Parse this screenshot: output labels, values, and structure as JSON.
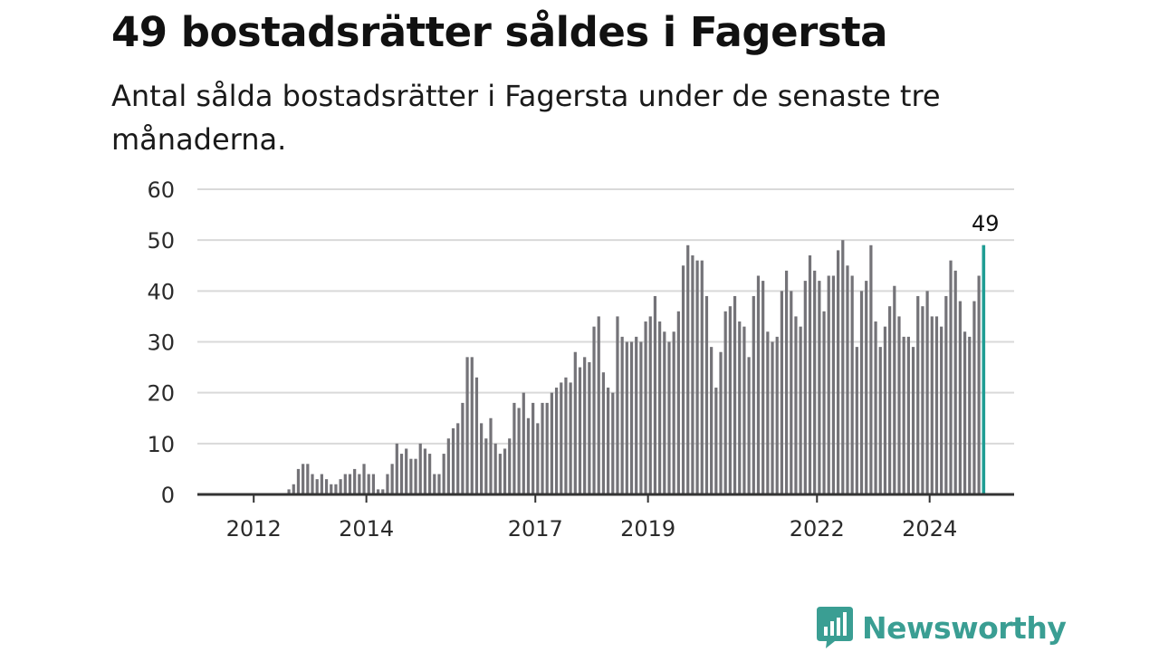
{
  "header": {
    "title": "49 bostadsrätter såldes i Fagersta",
    "subtitle": "Antal sålda bostadsrätter i Fagersta under de senaste tre månaderna."
  },
  "brand": {
    "name": "Newsworthy",
    "color": "#3a9e93",
    "icon": "newsworthy-logo-icon"
  },
  "colors": {
    "bar": "#747378",
    "highlight": "#1f9d94",
    "grid": "#d9d9d9",
    "axis": "#333333"
  },
  "chart_data": {
    "type": "bar",
    "title": "",
    "xlabel": "",
    "ylabel": "",
    "ylim": [
      0,
      60
    ],
    "y_ticks": [
      0,
      10,
      20,
      30,
      40,
      50,
      60
    ],
    "x_ticks": [
      "2012",
      "2014",
      "2017",
      "2019",
      "2022",
      "2024"
    ],
    "grid": true,
    "x_range": [
      "2011-01",
      "2025-07"
    ],
    "series": [
      {
        "start": "2012-03",
        "values": [
          0,
          0,
          0,
          0,
          0,
          1,
          2,
          5,
          6,
          6,
          4,
          3,
          4,
          3,
          2,
          2,
          3,
          4,
          4,
          5,
          4,
          6,
          4,
          4,
          1,
          1,
          4,
          6,
          10,
          8,
          9,
          7,
          7,
          10,
          9,
          8,
          4,
          4,
          8,
          11,
          13,
          14,
          18,
          27,
          27,
          23,
          14,
          11,
          15,
          10,
          8,
          9,
          11,
          18,
          17,
          20,
          15,
          18,
          14,
          18,
          18,
          20,
          21,
          22,
          23,
          22,
          28,
          25,
          27,
          26,
          33,
          35,
          24,
          21,
          20,
          35,
          31,
          30,
          30,
          31,
          30,
          34,
          35,
          39,
          34,
          32,
          30,
          32,
          36,
          45,
          49,
          47,
          46,
          46,
          39,
          29,
          21,
          28,
          36,
          37,
          39,
          34,
          33,
          27,
          39,
          43,
          42,
          32,
          30,
          31,
          40,
          44,
          40,
          35,
          33,
          42,
          47,
          44,
          42,
          36,
          43,
          43,
          48,
          50,
          45,
          43,
          29,
          40,
          42,
          49,
          34,
          29,
          33,
          37,
          41,
          35,
          31,
          31,
          29,
          39,
          37,
          40,
          35,
          35,
          33,
          39,
          46,
          44,
          38,
          32,
          31,
          38,
          43,
          49
        ]
      }
    ],
    "highlight": {
      "date": "2024-12",
      "value": 49,
      "label": "49"
    }
  }
}
